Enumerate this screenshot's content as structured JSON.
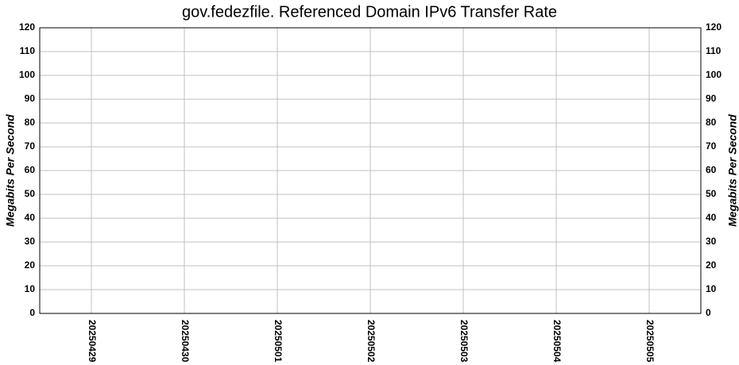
{
  "chart_data": {
    "type": "bar",
    "title": "gov.fedezfile. Referenced Domain IPv6 Transfer Rate",
    "y_label": "Megabits Per Second",
    "y2_label": "Megabits Per Second",
    "categories": [
      "20250429",
      "20250430",
      "20250501",
      "20250502",
      "20250503",
      "20250504",
      "20250505"
    ],
    "values": [
      0,
      0,
      0,
      0,
      0,
      0,
      0
    ],
    "color": "#000080",
    "ylim": [
      0,
      120
    ],
    "yticks": [
      0,
      10,
      20,
      30,
      40,
      50,
      60,
      70,
      80,
      90,
      100,
      110,
      120
    ],
    "y2lim": [
      0,
      120
    ],
    "y2ticks": [
      0,
      10,
      20,
      30,
      40,
      50,
      60,
      70,
      80,
      90,
      100,
      110,
      120
    ],
    "grid": true
  }
}
